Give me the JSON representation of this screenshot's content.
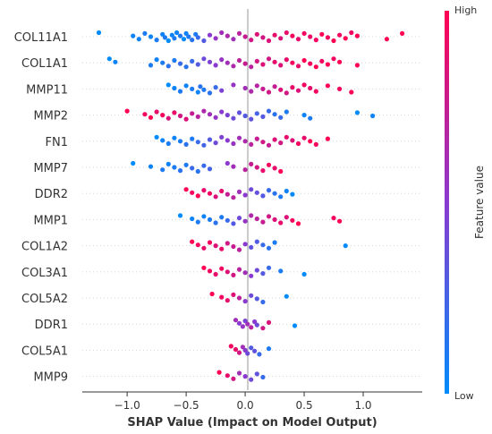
{
  "chart_data": {
    "type": "scatter",
    "subtype": "shap-beeswarm",
    "xlabel": "SHAP Value (Impact on Model Output)",
    "xlim": [
      -1.38,
      1.5
    ],
    "xticks": [
      -1.0,
      -0.5,
      0.0,
      0.5,
      1.0
    ],
    "xtick_labels": [
      "−1.0",
      "−0.5",
      "0.0",
      "0.5",
      "1.0"
    ],
    "features": [
      "COL11A1",
      "COL1A1",
      "MMP11",
      "MMP2",
      "FN1",
      "MMP7",
      "DDR2",
      "MMP1",
      "COL1A2",
      "COL3A1",
      "COL5A2",
      "DDR1",
      "COL5A1",
      "MMP9"
    ],
    "colorbar": {
      "label": "Feature value",
      "high_label": "High",
      "low_label": "Low",
      "low_color": "#008bfb",
      "high_color": "#ff0052"
    },
    "points": [
      {
        "feature": "COL11A1",
        "shap": [
          -1.24,
          -0.95,
          -0.9,
          -0.85,
          -0.8,
          -0.75,
          -0.7,
          -0.68,
          -0.65,
          -0.62,
          -0.6,
          -0.58,
          -0.55,
          -0.52,
          -0.5,
          -0.48,
          -0.45,
          -0.42,
          -0.4,
          -0.35,
          -0.3,
          -0.25,
          -0.2,
          -0.15,
          -0.1,
          -0.05,
          0.0,
          0.05,
          0.1,
          0.15,
          0.2,
          0.25,
          0.3,
          0.35,
          0.4,
          0.45,
          0.5,
          0.55,
          0.6,
          0.65,
          0.7,
          0.75,
          0.8,
          0.85,
          0.9,
          0.95,
          1.2,
          1.33
        ],
        "value": [
          0.0,
          0.05,
          0.05,
          0.1,
          0.05,
          0.1,
          0.05,
          0.1,
          0.0,
          0.05,
          0.1,
          0.05,
          0.1,
          0.0,
          0.05,
          0.1,
          0.15,
          0.1,
          0.2,
          0.3,
          0.5,
          0.55,
          0.6,
          0.65,
          0.6,
          0.7,
          0.75,
          0.8,
          0.85,
          0.8,
          0.85,
          0.9,
          0.85,
          0.9,
          0.95,
          0.9,
          0.95,
          0.9,
          0.95,
          1.0,
          0.95,
          1.0,
          0.95,
          1.0,
          0.95,
          1.0,
          1.0,
          1.0
        ]
      },
      {
        "feature": "COL1A1",
        "shap": [
          -1.15,
          -1.1,
          -0.8,
          -0.75,
          -0.7,
          -0.65,
          -0.6,
          -0.55,
          -0.5,
          -0.45,
          -0.4,
          -0.35,
          -0.3,
          -0.25,
          -0.2,
          -0.15,
          -0.1,
          -0.05,
          0.0,
          0.05,
          0.1,
          0.15,
          0.2,
          0.25,
          0.3,
          0.35,
          0.4,
          0.45,
          0.5,
          0.55,
          0.6,
          0.65,
          0.7,
          0.75,
          0.8,
          0.95
        ],
        "value": [
          0.0,
          0.05,
          0.1,
          0.05,
          0.1,
          0.15,
          0.1,
          0.2,
          0.15,
          0.2,
          0.3,
          0.4,
          0.45,
          0.5,
          0.55,
          0.6,
          0.65,
          0.7,
          0.75,
          0.7,
          0.8,
          0.85,
          0.8,
          0.9,
          0.85,
          0.9,
          0.95,
          0.9,
          1.0,
          0.95,
          1.0,
          0.95,
          1.0,
          0.95,
          1.0,
          1.0
        ]
      },
      {
        "feature": "MMP11",
        "shap": [
          -0.65,
          -0.6,
          -0.55,
          -0.5,
          -0.45,
          -0.4,
          -0.38,
          -0.35,
          -0.3,
          -0.25,
          -0.2,
          -0.1,
          0.0,
          0.05,
          0.1,
          0.15,
          0.2,
          0.25,
          0.3,
          0.35,
          0.4,
          0.45,
          0.5,
          0.55,
          0.6,
          0.7,
          0.8,
          0.9
        ],
        "value": [
          0.0,
          0.05,
          0.1,
          0.05,
          0.1,
          0.05,
          0.15,
          0.1,
          0.15,
          0.2,
          0.45,
          0.55,
          0.6,
          0.65,
          0.7,
          0.75,
          0.8,
          0.75,
          0.85,
          0.8,
          0.9,
          0.85,
          0.95,
          0.9,
          0.95,
          1.0,
          0.95,
          1.0
        ]
      },
      {
        "feature": "MMP2",
        "shap": [
          -1.0,
          -0.85,
          -0.8,
          -0.75,
          -0.7,
          -0.65,
          -0.6,
          -0.55,
          -0.5,
          -0.45,
          -0.4,
          -0.35,
          -0.3,
          -0.25,
          -0.2,
          -0.15,
          -0.1,
          -0.05,
          0.0,
          0.05,
          0.1,
          0.15,
          0.2,
          0.25,
          0.3,
          0.35,
          0.5,
          0.55,
          0.95,
          1.08
        ],
        "value": [
          1.0,
          0.95,
          1.0,
          0.9,
          0.95,
          0.85,
          0.9,
          0.8,
          0.85,
          0.75,
          0.7,
          0.65,
          0.6,
          0.55,
          0.5,
          0.45,
          0.4,
          0.35,
          0.3,
          0.35,
          0.25,
          0.3,
          0.2,
          0.15,
          0.2,
          0.1,
          0.05,
          0.1,
          0.0,
          0.05
        ]
      },
      {
        "feature": "FN1",
        "shap": [
          -0.75,
          -0.7,
          -0.65,
          -0.6,
          -0.55,
          -0.5,
          -0.45,
          -0.4,
          -0.35,
          -0.3,
          -0.25,
          -0.2,
          -0.15,
          -0.1,
          -0.05,
          0.0,
          0.05,
          0.1,
          0.15,
          0.2,
          0.25,
          0.3,
          0.35,
          0.4,
          0.45,
          0.5,
          0.55,
          0.6,
          0.7
        ],
        "value": [
          0.0,
          0.05,
          0.1,
          0.05,
          0.1,
          0.15,
          0.1,
          0.2,
          0.25,
          0.3,
          0.4,
          0.45,
          0.5,
          0.55,
          0.6,
          0.65,
          0.7,
          0.75,
          0.8,
          0.75,
          0.85,
          0.8,
          0.9,
          0.85,
          0.95,
          0.9,
          1.0,
          0.95,
          1.0
        ]
      },
      {
        "feature": "MMP7",
        "shap": [
          -0.95,
          -0.8,
          -0.7,
          -0.65,
          -0.6,
          -0.55,
          -0.5,
          -0.45,
          -0.4,
          -0.35,
          -0.3,
          -0.15,
          -0.1,
          0.0,
          0.05,
          0.1,
          0.15,
          0.2,
          0.25,
          0.3
        ],
        "value": [
          0.0,
          0.05,
          0.1,
          0.05,
          0.1,
          0.15,
          0.1,
          0.2,
          0.15,
          0.2,
          0.25,
          0.5,
          0.6,
          0.7,
          0.75,
          0.8,
          0.9,
          0.95,
          0.9,
          1.0
        ]
      },
      {
        "feature": "DDR2",
        "shap": [
          -0.5,
          -0.45,
          -0.4,
          -0.35,
          -0.3,
          -0.25,
          -0.2,
          -0.15,
          -0.1,
          -0.05,
          0.0,
          0.05,
          0.1,
          0.15,
          0.2,
          0.25,
          0.3,
          0.35,
          0.4
        ],
        "value": [
          1.0,
          0.95,
          1.0,
          0.9,
          0.95,
          0.85,
          0.9,
          0.75,
          0.7,
          0.6,
          0.5,
          0.4,
          0.35,
          0.3,
          0.2,
          0.15,
          0.1,
          0.05,
          0.0
        ]
      },
      {
        "feature": "MMP1",
        "shap": [
          -0.55,
          -0.45,
          -0.4,
          -0.35,
          -0.3,
          -0.25,
          -0.2,
          -0.15,
          -0.1,
          -0.05,
          0.0,
          0.05,
          0.1,
          0.15,
          0.2,
          0.25,
          0.3,
          0.35,
          0.4,
          0.45,
          0.75,
          0.8
        ],
        "value": [
          0.0,
          0.05,
          0.1,
          0.05,
          0.1,
          0.15,
          0.1,
          0.2,
          0.3,
          0.4,
          0.55,
          0.65,
          0.7,
          0.75,
          0.8,
          0.85,
          0.9,
          0.85,
          0.95,
          1.0,
          0.95,
          1.0
        ]
      },
      {
        "feature": "COL1A2",
        "shap": [
          -0.45,
          -0.4,
          -0.35,
          -0.3,
          -0.25,
          -0.2,
          -0.15,
          -0.1,
          -0.05,
          0.0,
          0.05,
          0.1,
          0.15,
          0.2,
          0.25,
          0.85
        ],
        "value": [
          1.0,
          0.95,
          0.9,
          0.95,
          0.85,
          0.9,
          0.8,
          0.75,
          0.7,
          0.5,
          0.35,
          0.3,
          0.2,
          0.15,
          0.1,
          0.0
        ]
      },
      {
        "feature": "COL3A1",
        "shap": [
          -0.35,
          -0.3,
          -0.25,
          -0.2,
          -0.15,
          -0.1,
          -0.05,
          0.0,
          0.05,
          0.1,
          0.15,
          0.2,
          0.3,
          0.5
        ],
        "value": [
          1.0,
          0.95,
          0.9,
          0.95,
          0.85,
          0.8,
          0.7,
          0.6,
          0.5,
          0.4,
          0.3,
          0.2,
          0.1,
          0.0
        ]
      },
      {
        "feature": "COL5A2",
        "shap": [
          -0.28,
          -0.2,
          -0.15,
          -0.1,
          -0.05,
          0.0,
          0.05,
          0.1,
          0.15,
          0.35
        ],
        "value": [
          1.0,
          0.95,
          0.9,
          0.85,
          0.7,
          0.5,
          0.4,
          0.3,
          0.2,
          0.0
        ]
      },
      {
        "feature": "DDR1",
        "shap": [
          -0.08,
          -0.05,
          -0.02,
          0.0,
          0.02,
          0.05,
          0.08,
          0.1,
          0.15,
          0.2,
          0.42
        ],
        "value": [
          0.6,
          0.5,
          0.55,
          0.45,
          0.6,
          0.7,
          0.5,
          0.4,
          0.8,
          0.85,
          0.0
        ]
      },
      {
        "feature": "COL5A1",
        "shap": [
          -0.12,
          -0.08,
          -0.05,
          -0.02,
          0.0,
          0.02,
          0.05,
          0.08,
          0.12,
          0.2
        ],
        "value": [
          0.95,
          0.9,
          0.8,
          0.6,
          0.5,
          0.4,
          0.3,
          0.35,
          0.2,
          0.1
        ]
      },
      {
        "feature": "MMP9",
        "shap": [
          -0.22,
          -0.15,
          -0.1,
          -0.05,
          0.0,
          0.05,
          0.1,
          0.15
        ],
        "value": [
          1.0,
          0.9,
          0.8,
          0.6,
          0.5,
          0.4,
          0.35,
          0.2
        ]
      }
    ]
  }
}
